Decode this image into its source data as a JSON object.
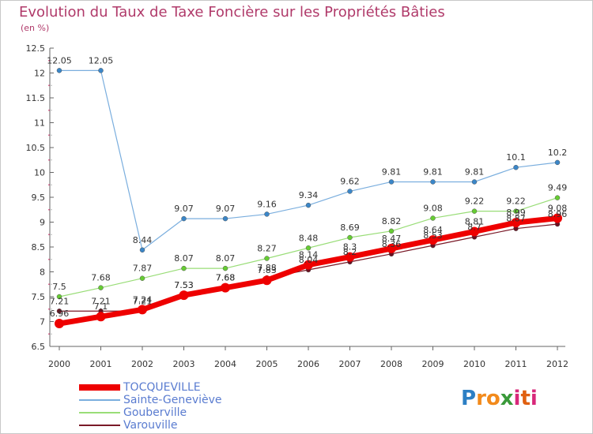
{
  "title": "Evolution du Taux de Taxe Foncière sur les Propriétés Bâties",
  "unit": "(en %)",
  "logo": {
    "letters": [
      {
        "ch": "P",
        "color": "#2c7fc4"
      },
      {
        "ch": "r",
        "color": "#f28a1b"
      },
      {
        "ch": "o",
        "color": "#f28a1b"
      },
      {
        "ch": "x",
        "color": "#3a9a3a"
      },
      {
        "ch": "i",
        "color": "#d8287a"
      },
      {
        "ch": "t",
        "color": "#e06010"
      },
      {
        "ch": "i",
        "color": "#d8287a"
      }
    ]
  },
  "chart_data": {
    "type": "line",
    "x": [
      "2000",
      "2001",
      "2002",
      "2003",
      "2004",
      "2005",
      "2006",
      "2007",
      "2008",
      "2009",
      "2010",
      "2011",
      "2012"
    ],
    "ylim": [
      6.5,
      12.5
    ],
    "yticks": [
      "6.5",
      "7",
      "7.5",
      "8",
      "8.5",
      "9",
      "9.5",
      "10",
      "10.5",
      "11",
      "11.5",
      "12",
      "12.5"
    ],
    "grid": false,
    "legend": "bottom-left",
    "series": [
      {
        "name": "Varouville",
        "color": "#7a1a28",
        "dot": "#6b1020",
        "width": 1.2,
        "radius": 3,
        "values": [
          7.21,
          7.21,
          7.21,
          7.53,
          7.68,
          7.88,
          8.04,
          8.2,
          8.36,
          8.53,
          8.7,
          8.87,
          8.96
        ],
        "labels": [
          "7.21",
          "7.21",
          "7.21",
          "7.53",
          "7.68",
          "7.88",
          "8.04",
          "8.2",
          "8.36",
          "8.53",
          "8.7",
          "8.87",
          "8.96"
        ]
      },
      {
        "name": "Gouberville",
        "color": "#99dd77",
        "dot": "#66cc33",
        "width": 1.2,
        "radius": 3,
        "values": [
          7.5,
          7.68,
          7.87,
          8.07,
          8.07,
          8.27,
          8.48,
          8.69,
          8.82,
          9.08,
          9.22,
          9.22,
          9.49
        ],
        "labels": [
          "7.5",
          "7.68",
          "7.87",
          "8.07",
          "8.07",
          "8.27",
          "8.48",
          "8.69",
          "8.82",
          "9.08",
          "9.22",
          "9.22",
          "9.49"
        ]
      },
      {
        "name": "Sainte-Geneviève",
        "color": "#7aaede",
        "dot": "#3a86c8",
        "width": 1.2,
        "radius": 3,
        "values": [
          12.05,
          12.05,
          8.44,
          9.07,
          9.07,
          9.16,
          9.34,
          9.62,
          9.81,
          9.81,
          9.81,
          10.1,
          10.2
        ],
        "labels": [
          "12.05",
          "12.05",
          "8.44",
          "9.07",
          "9.07",
          "9.16",
          "9.34",
          "9.62",
          "9.81",
          "9.81",
          "9.81",
          "10.1",
          "10.2"
        ]
      },
      {
        "name": "TOCQUEVILLE",
        "color": "#ee0000",
        "dot": "#ee0000",
        "width": 7,
        "radius": 6,
        "values": [
          6.96,
          7.1,
          7.24,
          7.53,
          7.68,
          7.83,
          8.14,
          8.3,
          8.47,
          8.64,
          8.81,
          8.99,
          9.08
        ],
        "labels": [
          "6.96",
          "7.1",
          "7.24",
          "7.53",
          "7.68",
          "7.83",
          "8.14",
          "8.3",
          "8.47",
          "8.64",
          "8.81",
          "8.99",
          "9.08"
        ]
      }
    ],
    "legend_order": [
      "TOCQUEVILLE",
      "Sainte-Geneviève",
      "Gouberville",
      "Varouville"
    ]
  }
}
